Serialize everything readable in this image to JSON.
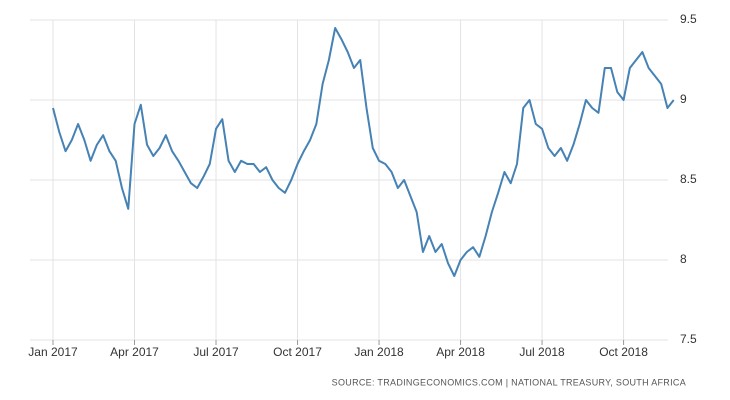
{
  "chart_data": {
    "type": "line",
    "source": "SOURCE: TRADINGECONOMICS.COM | NATIONAL TREASURY, SOUTH AFRICA",
    "categories": [
      "Jan 2017",
      null,
      null,
      null,
      null,
      null,
      null,
      null,
      null,
      null,
      null,
      null,
      null,
      "Apr 2017",
      null,
      null,
      null,
      null,
      null,
      null,
      null,
      null,
      null,
      null,
      null,
      null,
      "Jul 2017",
      null,
      null,
      null,
      null,
      null,
      null,
      null,
      null,
      null,
      null,
      null,
      null,
      "Oct 2017",
      null,
      null,
      null,
      null,
      null,
      null,
      null,
      null,
      null,
      null,
      null,
      null,
      "Jan 2018",
      null,
      null,
      null,
      null,
      null,
      null,
      null,
      null,
      null,
      null,
      null,
      null,
      "Apr 2018",
      null,
      null,
      null,
      null,
      null,
      null,
      null,
      null,
      null,
      null,
      null,
      null,
      "Jul 2018",
      null,
      null,
      null,
      null,
      null,
      null,
      null,
      null,
      null,
      null,
      null,
      null,
      "Oct 2018",
      null,
      null,
      null,
      null,
      null,
      null,
      null,
      null
    ],
    "values": [
      8.95,
      8.8,
      8.68,
      8.75,
      8.85,
      8.75,
      8.62,
      8.72,
      8.78,
      8.68,
      8.62,
      8.45,
      8.32,
      8.85,
      8.97,
      8.72,
      8.65,
      8.7,
      8.78,
      8.68,
      8.62,
      8.55,
      8.48,
      8.45,
      8.52,
      8.6,
      8.82,
      8.88,
      8.62,
      8.55,
      8.62,
      8.6,
      8.6,
      8.55,
      8.58,
      8.5,
      8.45,
      8.42,
      8.5,
      8.6,
      8.68,
      8.75,
      8.85,
      9.1,
      9.25,
      9.45,
      9.38,
      9.3,
      9.2,
      9.25,
      8.95,
      8.7,
      8.62,
      8.6,
      8.55,
      8.45,
      8.5,
      8.4,
      8.3,
      8.05,
      8.15,
      8.05,
      8.1,
      7.98,
      7.9,
      8.0,
      8.05,
      8.08,
      8.02,
      8.15,
      8.3,
      8.42,
      8.55,
      8.48,
      8.6,
      8.95,
      9.0,
      8.85,
      8.82,
      8.7,
      8.65,
      8.7,
      8.62,
      8.72,
      8.85,
      9.0,
      8.95,
      8.92,
      9.2,
      9.2,
      9.05,
      9.0,
      9.2,
      9.25,
      9.3,
      9.2,
      9.15,
      9.1,
      8.95,
      9.0
    ],
    "color": "#4682b4",
    "ylim": [
      7.5,
      9.5
    ],
    "yticks": [
      9.5,
      9,
      8.5,
      8,
      7.5
    ],
    "grid": true
  }
}
